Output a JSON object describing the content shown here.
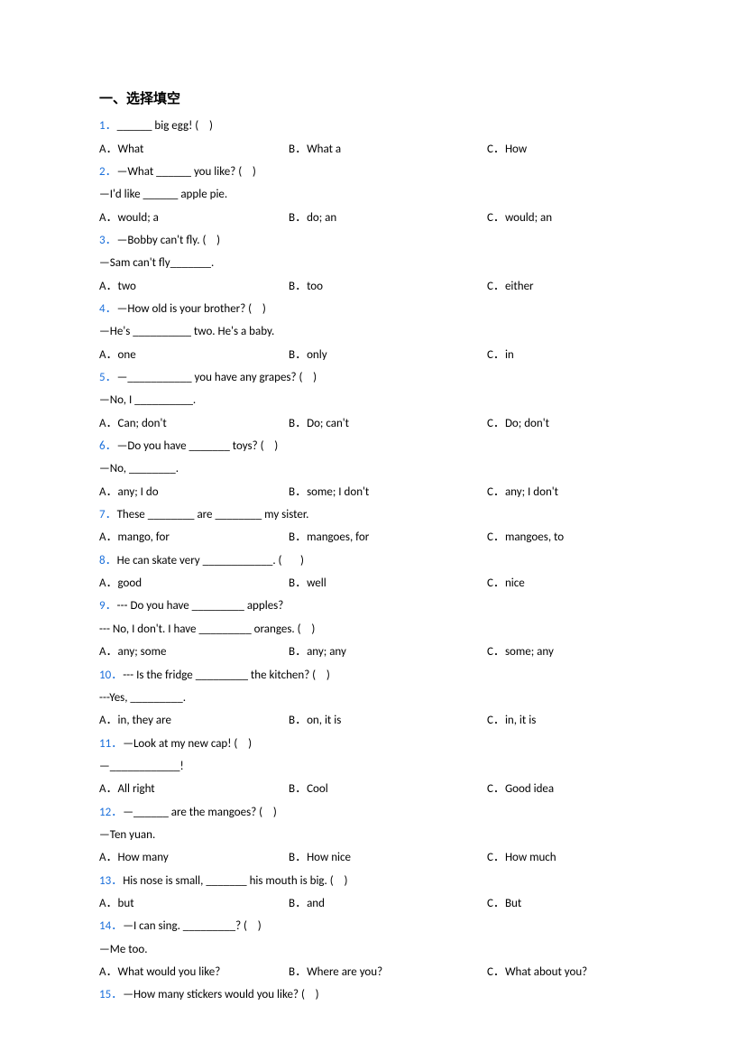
{
  "section_title": "一、选择填空",
  "colors": {
    "qnum": "#1a6fdb",
    "text": "#000000",
    "background": "#ffffff"
  },
  "questions": [
    {
      "num": 1,
      "lines": [
        "______ big egg! (    )"
      ],
      "opts": [
        "What",
        "What a",
        "How"
      ]
    },
    {
      "num": 2,
      "lines": [
        "—What ______ you like? (    )",
        "—I'd like ______ apple pie."
      ],
      "opts": [
        "would; a",
        "do; an",
        "would; an"
      ]
    },
    {
      "num": 3,
      "lines": [
        "—Bobby can't fly. (    )",
        "—Sam can't fly_______."
      ],
      "opts": [
        "two",
        "too",
        "either"
      ]
    },
    {
      "num": 4,
      "lines": [
        "—How old is your brother? (    )",
        "—He's __________ two. He's a baby."
      ],
      "opts": [
        "one",
        "only",
        "in"
      ]
    },
    {
      "num": 5,
      "lines": [
        "—___________ you have any grapes? (    )",
        "—No, I __________."
      ],
      "opts": [
        "Can; don't",
        "Do; can't",
        "Do; don't"
      ]
    },
    {
      "num": 6,
      "lines": [
        "—Do you have _______ toys? (    )",
        "—No, ________."
      ],
      "opts": [
        "any; I do",
        "some; I don't",
        "any; I don't"
      ]
    },
    {
      "num": 7,
      "lines": [
        "These ________ are ________ my sister."
      ],
      "opts": [
        "mango, for",
        "mangoes, for",
        "mangoes, to"
      ]
    },
    {
      "num": 8,
      "lines": [
        "He can skate very ____________. (       )"
      ],
      "opts": [
        "good",
        "well",
        "nice"
      ]
    },
    {
      "num": 9,
      "lines": [
        "--- Do you have _________ apples?",
        "--- No, I don't. I have _________ oranges. (    )"
      ],
      "opts": [
        "any; some",
        "any; any",
        "some; any"
      ]
    },
    {
      "num": 10,
      "lines": [
        "--- Is the fridge _________ the kitchen? (    )",
        "---Yes, _________."
      ],
      "opts": [
        "in, they are",
        "on, it is",
        "in, it is"
      ]
    },
    {
      "num": 11,
      "lines": [
        "—Look at my new cap! (    )",
        "—____________!"
      ],
      "opts": [
        "All right",
        "Cool",
        "Good idea"
      ]
    },
    {
      "num": 12,
      "lines": [
        "—______ are the mangoes? (    )",
        "—Ten yuan."
      ],
      "opts": [
        "How many",
        "How nice",
        "How much"
      ]
    },
    {
      "num": 13,
      "lines": [
        "His nose is small, _______ his mouth is big. (    )"
      ],
      "opts": [
        "but",
        "and",
        "But"
      ]
    },
    {
      "num": 14,
      "lines": [
        "—I can sing. _________? (    )",
        "—Me too."
      ],
      "opts": [
        "What would you like?",
        "Where are you?",
        "What about you?"
      ]
    },
    {
      "num": 15,
      "lines": [
        "—How many stickers would you like? (    )"
      ],
      "opts": null
    }
  ]
}
